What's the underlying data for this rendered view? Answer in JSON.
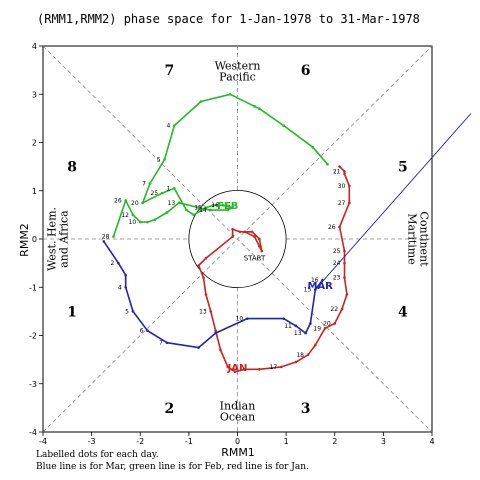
{
  "chart_data": {
    "type": "line",
    "title": "(RMM1,RMM2) phase space for  1-Jan-1978 to 31-Mar-1978",
    "xlabel": "RMM1",
    "ylabel": "RMM2",
    "xlim": [
      -4,
      4
    ],
    "ylim": [
      -4,
      4
    ],
    "xticks": [
      "-4",
      "-3",
      "-2",
      "-1",
      "0",
      "1",
      "2",
      "3",
      "4"
    ],
    "yticks": [
      "-4",
      "-3",
      "-2",
      "-1",
      "0",
      "1",
      "2",
      "3",
      "4"
    ],
    "grid": false,
    "unit_circle_radius": 1,
    "phases": [
      "1",
      "2",
      "3",
      "4",
      "5",
      "6",
      "7",
      "8"
    ],
    "regions": {
      "top": [
        "Western",
        "Pacific"
      ],
      "bottom": [
        "Indian",
        "Ocean"
      ],
      "left": [
        "West. Hem.",
        "and Africa"
      ],
      "right": [
        "Maritime",
        "Continent"
      ]
    },
    "start_label": "START",
    "series": [
      {
        "name": "JAN",
        "color": "#cc2222",
        "x": [
          0.15,
          0.35,
          0.45,
          0.5,
          0.45,
          0.3,
          0.05,
          -0.1,
          -0.1,
          -0.65,
          -0.8,
          -0.7,
          -0.65,
          -0.55,
          -0.45,
          -0.35,
          -0.2,
          -0.05,
          0.15,
          0.45,
          0.9,
          1.2,
          1.45,
          1.6,
          1.8,
          2.0,
          2.15,
          2.25,
          2.2,
          2.2,
          2.2,
          2.1,
          2.3,
          2.3,
          2.2,
          2.2,
          2.1
        ],
        "y": [
          0.15,
          0.05,
          -0.15,
          -0.25,
          0.0,
          0.15,
          0.15,
          0.2,
          0.05,
          -0.4,
          -0.55,
          -0.8,
          -1.15,
          -1.5,
          -1.9,
          -2.3,
          -2.65,
          -2.75,
          -2.7,
          -2.7,
          -2.65,
          -2.55,
          -2.4,
          -2.2,
          -1.85,
          -1.75,
          -1.45,
          -1.15,
          -0.8,
          -0.5,
          -0.25,
          0.25,
          0.75,
          1.1,
          1.35,
          1.4,
          1.5
        ],
        "labels": {
          "13": "13",
          "20": "17",
          "22": "18",
          "24": "19",
          "25": "20",
          "26": "22",
          "28": "23",
          "29": "24",
          "30": "25",
          "31": "26",
          "32": "27",
          "33": "30",
          "35": "21"
        }
      },
      {
        "name": "FEB",
        "color": "#22bb22",
        "x": [
          1.85,
          1.55,
          0.95,
          0.45,
          0.35,
          -0.15,
          -0.75,
          -1.3,
          -1.5,
          -1.8,
          -1.95,
          -1.55,
          -1.3,
          -1.05,
          -0.9,
          -0.65,
          -0.5,
          -0.3,
          -0.1,
          -0.2,
          -0.55,
          -0.8,
          -1.2,
          -1.45,
          -1.7,
          -1.85,
          -2.0,
          -2.15,
          -2.3,
          -2.55
        ],
        "y": [
          1.55,
          1.9,
          2.35,
          2.7,
          2.75,
          3.0,
          2.85,
          2.35,
          1.65,
          1.15,
          0.75,
          0.95,
          1.05,
          0.6,
          0.5,
          0.65,
          0.7,
          0.7,
          0.65,
          0.6,
          0.6,
          0.65,
          0.75,
          0.55,
          0.4,
          0.35,
          0.35,
          0.5,
          0.8,
          0.05
        ],
        "labels": {
          "7": "4",
          "8": "5",
          "9": "7",
          "10": "20",
          "11": "25",
          "12": "1",
          "15": "15",
          "17": "16",
          "20": "14",
          "22": "13",
          "26": "10",
          "27": "12",
          "28": "26",
          "29": "28"
        }
      },
      {
        "name": "MAR",
        "color": "#2222bb",
        "x": [
          -2.75,
          -2.45,
          -2.3,
          -2.3,
          -2.15,
          -1.85,
          -1.45,
          -0.8,
          -0.45,
          0.2,
          0.95,
          1.2,
          1.4,
          1.5,
          1.6,
          1.75
        ],
        "y": [
          -0.05,
          -0.5,
          -0.75,
          -1.0,
          -1.5,
          -1.9,
          -2.15,
          -2.25,
          -1.95,
          -1.65,
          -1.65,
          -1.8,
          -1.95,
          -1.75,
          -1.05,
          -0.85
        ],
        "labels": {
          "1": "2",
          "3": "4",
          "4": "5",
          "5": "6",
          "6": "7",
          "9": "10",
          "11": "11",
          "12": "13",
          "14": "15",
          "15": "16"
        }
      }
    ],
    "axis_extension": {
      "color": "#2222bb",
      "from": [
        1.6,
        -1.05
      ],
      "to": [
        4.8,
        2.6
      ]
    },
    "month_labels": [
      {
        "text": "JAN",
        "x": 0.0,
        "y": -2.65,
        "color": "#cc2222"
      },
      {
        "text": "FEB",
        "x": -0.2,
        "y": 0.7,
        "color": "#22bb22"
      },
      {
        "text": "MAR",
        "x": 1.7,
        "y": -0.95,
        "color": "#2222bb"
      }
    ]
  },
  "notes": [
    "Labelled dots for each day.",
    "Blue line is for Mar, green line is for Feb, red line is for Jan."
  ]
}
